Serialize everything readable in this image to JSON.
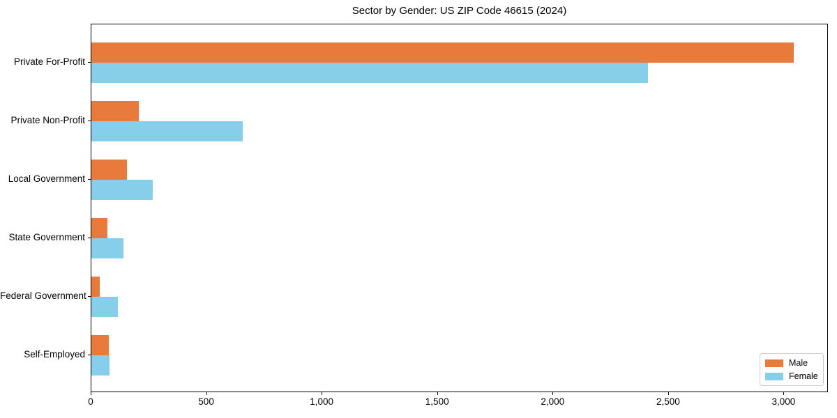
{
  "chart_data": {
    "type": "bar",
    "orientation": "horizontal",
    "title": "Sector by Gender: US ZIP Code 46615 (2024)",
    "categories": [
      "Private For-Profit",
      "Private Non-Profit",
      "Local Government",
      "State Government",
      "Federal Government",
      "Self-Employed"
    ],
    "series": [
      {
        "name": "Male",
        "color": "#e87a3c",
        "values": [
          3040,
          205,
          155,
          68,
          35,
          76
        ]
      },
      {
        "name": "Female",
        "color": "#87ceeb",
        "values": [
          2410,
          655,
          265,
          139,
          116,
          80
        ]
      }
    ],
    "xlabel": "",
    "ylabel": "",
    "xlim": [
      0,
      3192
    ],
    "xticks": [
      0,
      500,
      1000,
      1500,
      2000,
      2500,
      3000
    ],
    "xtick_labels": [
      "0",
      "500",
      "1,000",
      "1,500",
      "2,000",
      "2,500",
      "3,000"
    ],
    "grid": false,
    "legend_position": "lower right",
    "plot_border_color": "#000000",
    "background_color": "#ffffff"
  }
}
